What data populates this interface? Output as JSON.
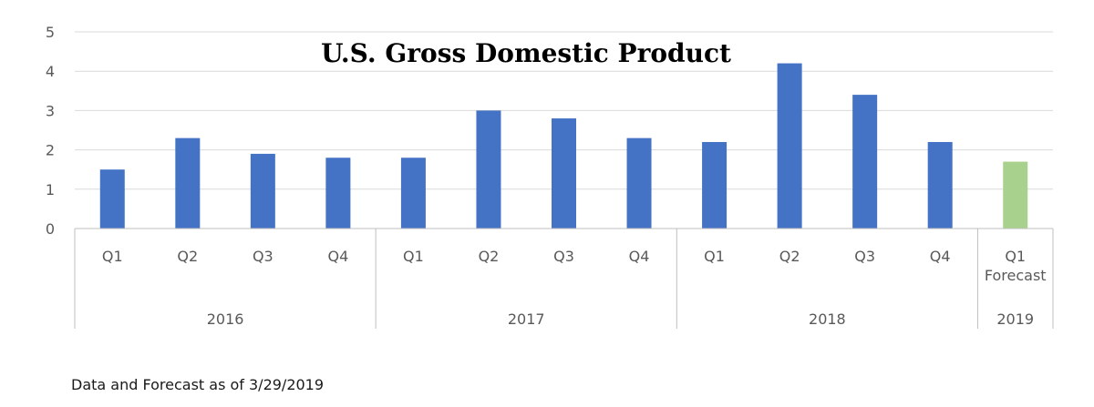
{
  "chart_data": {
    "type": "bar",
    "title": "U.S. Gross Domestic Product",
    "categories": [
      "Q1",
      "Q2",
      "Q3",
      "Q4",
      "Q1",
      "Q2",
      "Q3",
      "Q4",
      "Q1",
      "Q2",
      "Q3",
      "Q4",
      "Q1 Forecast"
    ],
    "category_lines": [
      [
        "Q1"
      ],
      [
        "Q2"
      ],
      [
        "Q3"
      ],
      [
        "Q4"
      ],
      [
        "Q1"
      ],
      [
        "Q2"
      ],
      [
        "Q3"
      ],
      [
        "Q4"
      ],
      [
        "Q1"
      ],
      [
        "Q2"
      ],
      [
        "Q3"
      ],
      [
        "Q4"
      ],
      [
        "Q1",
        "Forecast"
      ]
    ],
    "groups": [
      {
        "label": "2016",
        "count": 4
      },
      {
        "label": "2017",
        "count": 4
      },
      {
        "label": "2018",
        "count": 4
      },
      {
        "label": "2019",
        "count": 1
      }
    ],
    "values": [
      1.5,
      2.3,
      1.9,
      1.8,
      1.8,
      3.0,
      2.8,
      2.3,
      2.2,
      4.2,
      3.4,
      2.2,
      1.7
    ],
    "forecast_flags": [
      false,
      false,
      false,
      false,
      false,
      false,
      false,
      false,
      false,
      false,
      false,
      false,
      true
    ],
    "ylim": [
      0,
      5
    ],
    "yticks": [
      "0",
      "1",
      "2",
      "3",
      "4",
      "5"
    ],
    "xlabel": "",
    "ylabel": "",
    "grid": true,
    "colors": {
      "actual": "#4472C4",
      "forecast": "#A9D18E",
      "grid": "#D9D9D9",
      "axis": "#BFBFBF",
      "text": "#595959"
    }
  },
  "footnote": "Data and Forecast as of 3/29/2019"
}
